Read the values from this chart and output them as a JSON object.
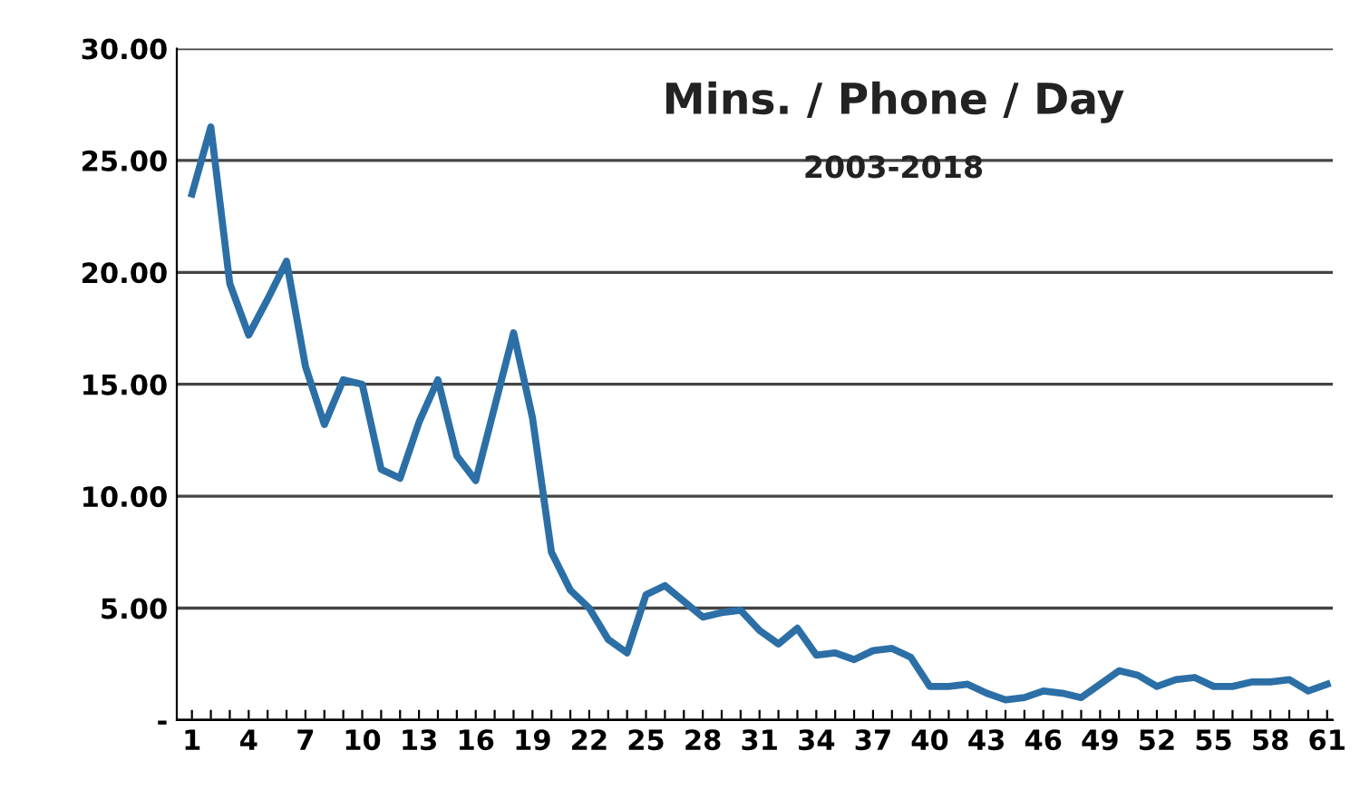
{
  "chart_data": {
    "type": "line",
    "title": "Mins. / Phone / Day",
    "subtitle": "2003-2018",
    "categories": [
      "1",
      null,
      null,
      "4",
      null,
      null,
      "7",
      null,
      null,
      "10",
      null,
      null,
      "13",
      null,
      null,
      "16",
      null,
      null,
      "19",
      null,
      null,
      "22",
      null,
      null,
      "25",
      null,
      null,
      "28",
      null,
      null,
      "31",
      null,
      null,
      "34",
      null,
      null,
      "37",
      null,
      null,
      "40",
      null,
      null,
      "43",
      null,
      null,
      "46",
      null,
      null,
      "49",
      null,
      null,
      "52",
      null,
      null,
      "55",
      null,
      null,
      "58",
      null,
      null,
      "61"
    ],
    "series": [
      {
        "color": "#2b6fa6",
        "values": [
          23.5,
          26.5,
          19.5,
          17.2,
          18.8,
          20.5,
          15.8,
          13.2,
          15.2,
          15.0,
          11.2,
          10.8,
          13.3,
          15.2,
          11.8,
          10.7,
          14.0,
          17.3,
          13.5,
          7.5,
          5.8,
          5.0,
          3.6,
          3.0,
          5.6,
          6.0,
          5.3,
          4.6,
          4.8,
          4.9,
          4.0,
          3.4,
          4.1,
          2.9,
          3.0,
          2.7,
          3.1,
          3.2,
          2.8,
          1.5,
          1.5,
          1.6,
          1.2,
          0.9,
          1.0,
          1.3,
          1.2,
          1.0,
          1.6,
          2.2,
          2.0,
          1.5,
          1.8,
          1.9,
          1.5,
          1.5,
          1.7,
          1.7,
          1.8,
          1.3,
          1.6
        ]
      }
    ],
    "ylim": [
      0,
      30
    ],
    "yticks": [
      {
        "value": 0,
        "label": "-"
      },
      {
        "value": 5,
        "label": "5.00"
      },
      {
        "value": 10,
        "label": "10.00"
      },
      {
        "value": 15,
        "label": "15.00"
      },
      {
        "value": 20,
        "label": "20.00"
      },
      {
        "value": 25,
        "label": "25.00"
      },
      {
        "value": 30,
        "label": "30.00"
      }
    ],
    "grid": "y",
    "marker": "none",
    "line_style": "solid"
  }
}
